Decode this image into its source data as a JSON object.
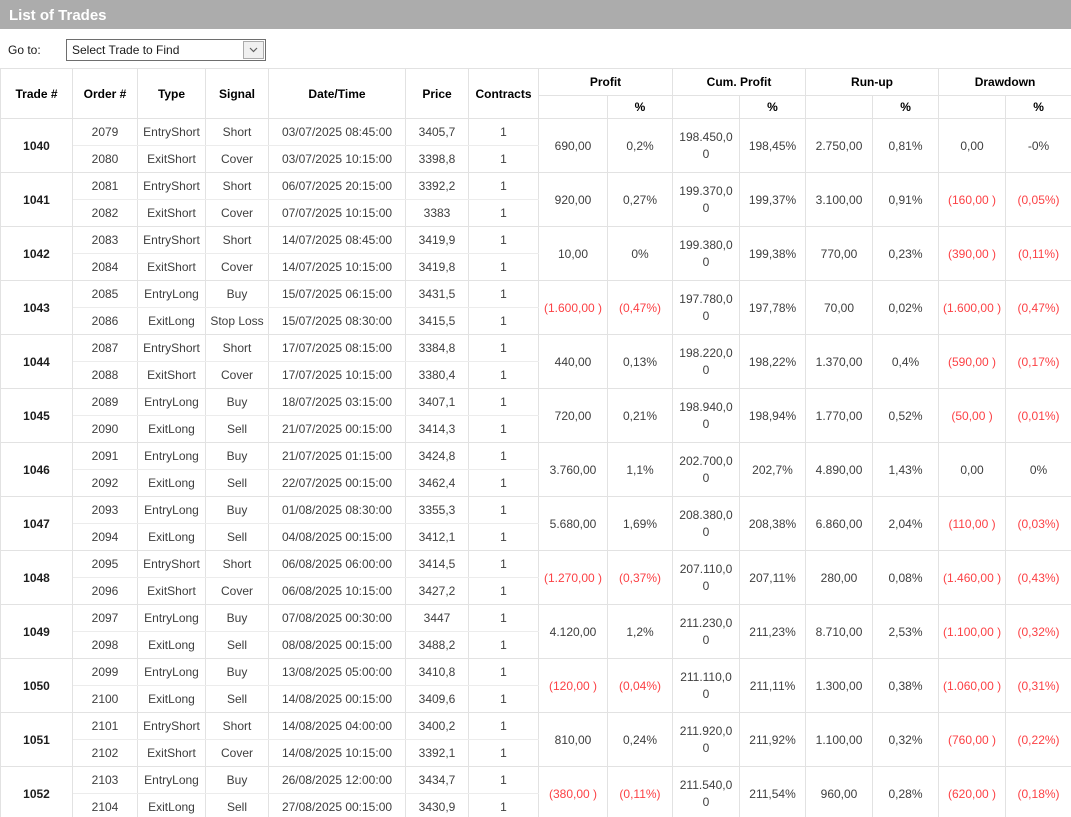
{
  "title": "List of Trades",
  "goto": {
    "label": "Go to:",
    "dropdown_value": "Select Trade to Find"
  },
  "columns": {
    "trade": "Trade #",
    "order": "Order #",
    "type": "Type",
    "signal": "Signal",
    "datetime": "Date/Time",
    "price": "Price",
    "contracts": "Contracts",
    "profit": "Profit",
    "cum_profit": "Cum. Profit",
    "runup": "Run-up",
    "drawdown": "Drawdown",
    "pct": "%"
  },
  "colors": {
    "title_bar": "#acacac",
    "negative": "#fc4145",
    "grid": "#e2e2e2"
  },
  "trades": [
    {
      "trade_no": "1040",
      "entry": {
        "order": "2079",
        "type": "EntryShort",
        "signal": "Short",
        "datetime": "03/07/2025 08:45:00",
        "price": "3405,7",
        "contracts": "1"
      },
      "exit": {
        "order": "2080",
        "type": "ExitShort",
        "signal": "Cover",
        "datetime": "03/07/2025 10:15:00",
        "price": "3398,8",
        "contracts": "1"
      },
      "profit": "690,00",
      "profit_pct": "0,2%",
      "cum_profit": "198.450,00",
      "cum_profit_pct": "198,45%",
      "runup": "2.750,00",
      "runup_pct": "0,81%",
      "drawdown": "0,00",
      "drawdown_pct": "-0%"
    },
    {
      "trade_no": "1041",
      "entry": {
        "order": "2081",
        "type": "EntryShort",
        "signal": "Short",
        "datetime": "06/07/2025 20:15:00",
        "price": "3392,2",
        "contracts": "1"
      },
      "exit": {
        "order": "2082",
        "type": "ExitShort",
        "signal": "Cover",
        "datetime": "07/07/2025 10:15:00",
        "price": "3383",
        "contracts": "1"
      },
      "profit": "920,00",
      "profit_pct": "0,27%",
      "cum_profit": "199.370,00",
      "cum_profit_pct": "199,37%",
      "runup": "3.100,00",
      "runup_pct": "0,91%",
      "drawdown": "(160,00 )",
      "drawdown_pct": "(0,05%)"
    },
    {
      "trade_no": "1042",
      "entry": {
        "order": "2083",
        "type": "EntryShort",
        "signal": "Short",
        "datetime": "14/07/2025 08:45:00",
        "price": "3419,9",
        "contracts": "1"
      },
      "exit": {
        "order": "2084",
        "type": "ExitShort",
        "signal": "Cover",
        "datetime": "14/07/2025 10:15:00",
        "price": "3419,8",
        "contracts": "1"
      },
      "profit": "10,00",
      "profit_pct": "0%",
      "cum_profit": "199.380,00",
      "cum_profit_pct": "199,38%",
      "runup": "770,00",
      "runup_pct": "0,23%",
      "drawdown": "(390,00 )",
      "drawdown_pct": "(0,11%)"
    },
    {
      "trade_no": "1043",
      "entry": {
        "order": "2085",
        "type": "EntryLong",
        "signal": "Buy",
        "datetime": "15/07/2025 06:15:00",
        "price": "3431,5",
        "contracts": "1"
      },
      "exit": {
        "order": "2086",
        "type": "ExitLong",
        "signal": "Stop Loss",
        "datetime": "15/07/2025 08:30:00",
        "price": "3415,5",
        "contracts": "1"
      },
      "profit": "(1.600,00 )",
      "profit_pct": "(0,47%)",
      "cum_profit": "197.780,00",
      "cum_profit_pct": "197,78%",
      "runup": "70,00",
      "runup_pct": "0,02%",
      "drawdown": "(1.600,00 )",
      "drawdown_pct": "(0,47%)"
    },
    {
      "trade_no": "1044",
      "entry": {
        "order": "2087",
        "type": "EntryShort",
        "signal": "Short",
        "datetime": "17/07/2025 08:15:00",
        "price": "3384,8",
        "contracts": "1"
      },
      "exit": {
        "order": "2088",
        "type": "ExitShort",
        "signal": "Cover",
        "datetime": "17/07/2025 10:15:00",
        "price": "3380,4",
        "contracts": "1"
      },
      "profit": "440,00",
      "profit_pct": "0,13%",
      "cum_profit": "198.220,00",
      "cum_profit_pct": "198,22%",
      "runup": "1.370,00",
      "runup_pct": "0,4%",
      "drawdown": "(590,00 )",
      "drawdown_pct": "(0,17%)"
    },
    {
      "trade_no": "1045",
      "entry": {
        "order": "2089",
        "type": "EntryLong",
        "signal": "Buy",
        "datetime": "18/07/2025 03:15:00",
        "price": "3407,1",
        "contracts": "1"
      },
      "exit": {
        "order": "2090",
        "type": "ExitLong",
        "signal": "Sell",
        "datetime": "21/07/2025 00:15:00",
        "price": "3414,3",
        "contracts": "1"
      },
      "profit": "720,00",
      "profit_pct": "0,21%",
      "cum_profit": "198.940,00",
      "cum_profit_pct": "198,94%",
      "runup": "1.770,00",
      "runup_pct": "0,52%",
      "drawdown": "(50,00 )",
      "drawdown_pct": "(0,01%)"
    },
    {
      "trade_no": "1046",
      "entry": {
        "order": "2091",
        "type": "EntryLong",
        "signal": "Buy",
        "datetime": "21/07/2025 01:15:00",
        "price": "3424,8",
        "contracts": "1"
      },
      "exit": {
        "order": "2092",
        "type": "ExitLong",
        "signal": "Sell",
        "datetime": "22/07/2025 00:15:00",
        "price": "3462,4",
        "contracts": "1"
      },
      "profit": "3.760,00",
      "profit_pct": "1,1%",
      "cum_profit": "202.700,00",
      "cum_profit_pct": "202,7%",
      "runup": "4.890,00",
      "runup_pct": "1,43%",
      "drawdown": "0,00",
      "drawdown_pct": "0%"
    },
    {
      "trade_no": "1047",
      "entry": {
        "order": "2093",
        "type": "EntryLong",
        "signal": "Buy",
        "datetime": "01/08/2025 08:30:00",
        "price": "3355,3",
        "contracts": "1"
      },
      "exit": {
        "order": "2094",
        "type": "ExitLong",
        "signal": "Sell",
        "datetime": "04/08/2025 00:15:00",
        "price": "3412,1",
        "contracts": "1"
      },
      "profit": "5.680,00",
      "profit_pct": "1,69%",
      "cum_profit": "208.380,00",
      "cum_profit_pct": "208,38%",
      "runup": "6.860,00",
      "runup_pct": "2,04%",
      "drawdown": "(110,00 )",
      "drawdown_pct": "(0,03%)"
    },
    {
      "trade_no": "1048",
      "entry": {
        "order": "2095",
        "type": "EntryShort",
        "signal": "Short",
        "datetime": "06/08/2025 06:00:00",
        "price": "3414,5",
        "contracts": "1"
      },
      "exit": {
        "order": "2096",
        "type": "ExitShort",
        "signal": "Cover",
        "datetime": "06/08/2025 10:15:00",
        "price": "3427,2",
        "contracts": "1"
      },
      "profit": "(1.270,00 )",
      "profit_pct": "(0,37%)",
      "cum_profit": "207.110,00",
      "cum_profit_pct": "207,11%",
      "runup": "280,00",
      "runup_pct": "0,08%",
      "drawdown": "(1.460,00 )",
      "drawdown_pct": "(0,43%)"
    },
    {
      "trade_no": "1049",
      "entry": {
        "order": "2097",
        "type": "EntryLong",
        "signal": "Buy",
        "datetime": "07/08/2025 00:30:00",
        "price": "3447",
        "contracts": "1"
      },
      "exit": {
        "order": "2098",
        "type": "ExitLong",
        "signal": "Sell",
        "datetime": "08/08/2025 00:15:00",
        "price": "3488,2",
        "contracts": "1"
      },
      "profit": "4.120,00",
      "profit_pct": "1,2%",
      "cum_profit": "211.230,00",
      "cum_profit_pct": "211,23%",
      "runup": "8.710,00",
      "runup_pct": "2,53%",
      "drawdown": "(1.100,00 )",
      "drawdown_pct": "(0,32%)"
    },
    {
      "trade_no": "1050",
      "entry": {
        "order": "2099",
        "type": "EntryLong",
        "signal": "Buy",
        "datetime": "13/08/2025 05:00:00",
        "price": "3410,8",
        "contracts": "1"
      },
      "exit": {
        "order": "2100",
        "type": "ExitLong",
        "signal": "Sell",
        "datetime": "14/08/2025 00:15:00",
        "price": "3409,6",
        "contracts": "1"
      },
      "profit": "(120,00 )",
      "profit_pct": "(0,04%)",
      "cum_profit": "211.110,00",
      "cum_profit_pct": "211,11%",
      "runup": "1.300,00",
      "runup_pct": "0,38%",
      "drawdown": "(1.060,00 )",
      "drawdown_pct": "(0,31%)"
    },
    {
      "trade_no": "1051",
      "entry": {
        "order": "2101",
        "type": "EntryShort",
        "signal": "Short",
        "datetime": "14/08/2025 04:00:00",
        "price": "3400,2",
        "contracts": "1"
      },
      "exit": {
        "order": "2102",
        "type": "ExitShort",
        "signal": "Cover",
        "datetime": "14/08/2025 10:15:00",
        "price": "3392,1",
        "contracts": "1"
      },
      "profit": "810,00",
      "profit_pct": "0,24%",
      "cum_profit": "211.920,00",
      "cum_profit_pct": "211,92%",
      "runup": "1.100,00",
      "runup_pct": "0,32%",
      "drawdown": "(760,00 )",
      "drawdown_pct": "(0,22%)"
    },
    {
      "trade_no": "1052",
      "entry": {
        "order": "2103",
        "type": "EntryLong",
        "signal": "Buy",
        "datetime": "26/08/2025 12:00:00",
        "price": "3434,7",
        "contracts": "1"
      },
      "exit": {
        "order": "2104",
        "type": "ExitLong",
        "signal": "Sell",
        "datetime": "27/08/2025 00:15:00",
        "price": "3430,9",
        "contracts": "1"
      },
      "profit": "(380,00 )",
      "profit_pct": "(0,11%)",
      "cum_profit": "211.540,00",
      "cum_profit_pct": "211,54%",
      "runup": "960,00",
      "runup_pct": "0,28%",
      "drawdown": "(620,00 )",
      "drawdown_pct": "(0,18%)"
    }
  ]
}
